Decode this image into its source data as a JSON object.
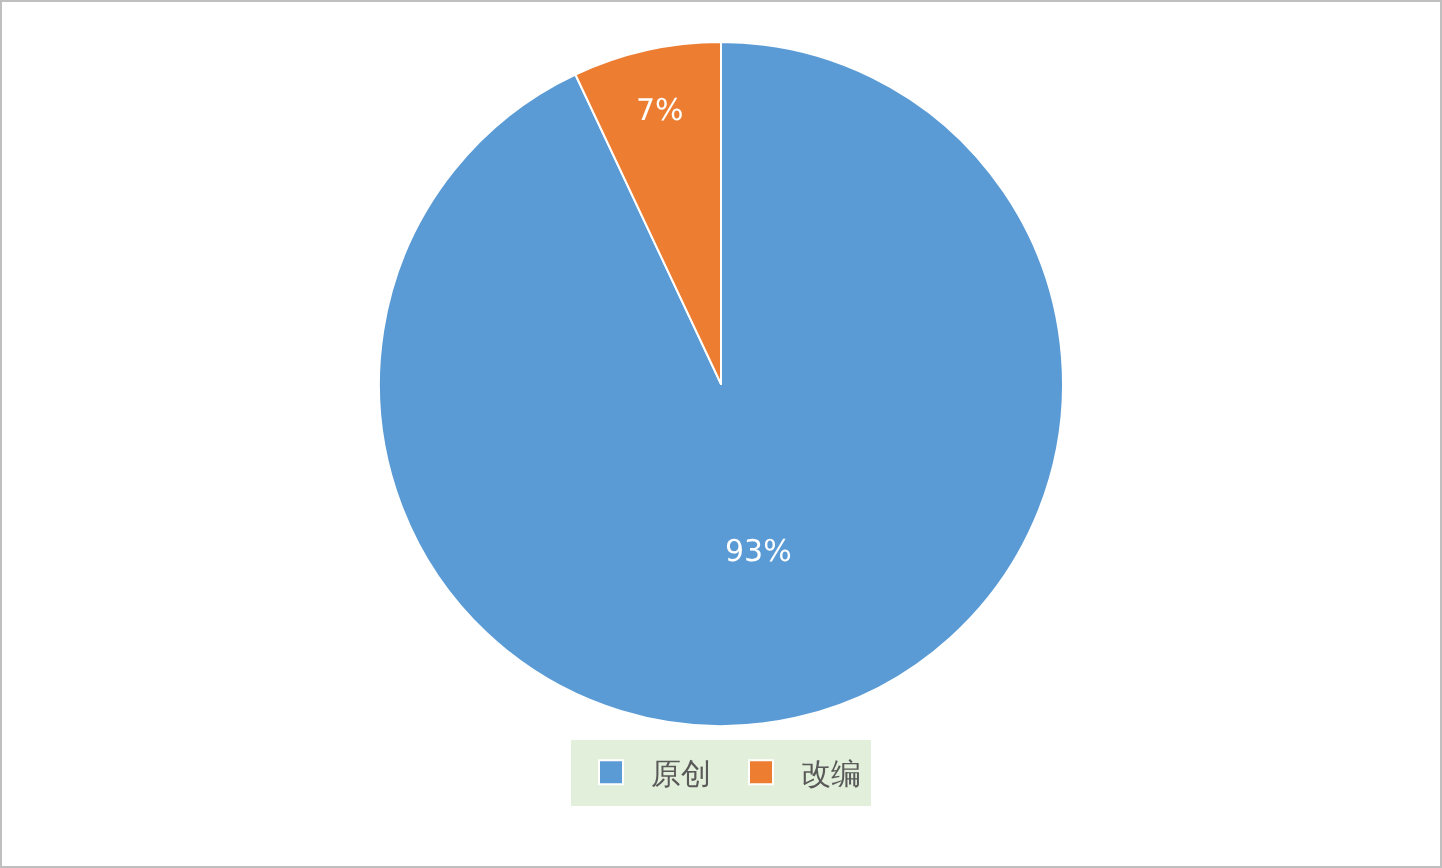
{
  "chart_data": {
    "type": "pie",
    "categories": [
      "原创",
      "改编"
    ],
    "values": [
      93,
      7
    ],
    "colors": [
      "#5b9bd5",
      "#ed7d31"
    ],
    "value_labels": [
      "93%",
      "7%"
    ],
    "legend": "bottom"
  }
}
